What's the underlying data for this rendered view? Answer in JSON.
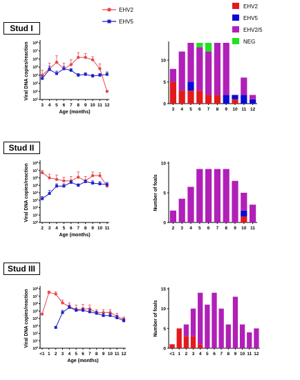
{
  "colors": {
    "ehv2": "#e8474a",
    "ehv5": "#1f1fd0",
    "bar_ehv2": "#e31a1c",
    "bar_ehv5": "#0a0ad8",
    "bar_mix": "#b020b8",
    "bar_neg": "#22e022",
    "line_ehv5": "#1a1ab8"
  },
  "line_legend": [
    {
      "key": "ehv2",
      "label": "EHV2"
    },
    {
      "key": "ehv5",
      "label": "EHV5"
    }
  ],
  "bar_legend": [
    {
      "key": "bar_ehv2",
      "label": "EHV2"
    },
    {
      "key": "bar_ehv5",
      "label": "EHV5"
    },
    {
      "key": "bar_mix",
      "label": "EHV2/5"
    },
    {
      "key": "bar_neg",
      "label": "NEG"
    }
  ],
  "studs": [
    {
      "label": "Stud I",
      "line": {
        "xlabel": "Age (months)",
        "ylabel": "Viral DNA copies/reaction",
        "categories": [
          "3",
          "4",
          "5",
          "6",
          "7",
          "8",
          "9",
          "10",
          "11",
          "12"
        ],
        "ytick_labels": [
          "10^1",
          "10^2",
          "10^3",
          "10^4",
          "10^5",
          "10^6",
          "10^7",
          "10^8"
        ],
        "ylim_log": [
          1,
          8
        ],
        "series": [
          {
            "key": "ehv2",
            "name": "EHV2",
            "values": [
              4.0,
              4.8,
              5.6,
              4.8,
              5.3,
              6.2,
              6.2,
              5.9,
              4.8,
              2.0
            ],
            "err": [
              0.6,
              0.7,
              0.8,
              0.7,
              0.6,
              0.6,
              0.5,
              0.4,
              0.6,
              0.1
            ]
          },
          {
            "key": "ehv5",
            "name": "EHV5",
            "values": [
              3.6,
              4.7,
              4.2,
              4.8,
              4.6,
              4.0,
              4.1,
              3.9,
              4.0,
              4.1
            ],
            "err": [
              0.3,
              0.4,
              0.3,
              0.3,
              0.2,
              0.2,
              0.2,
              0.2,
              0.2,
              0.3
            ]
          }
        ]
      },
      "bar": {
        "ylabel": "",
        "categories": [
          "3",
          "4",
          "5",
          "6",
          "7",
          "8",
          "9",
          "10",
          "11",
          "12"
        ],
        "ymax": 14,
        "yticks": [
          0,
          5,
          10
        ],
        "stacks": {
          "bar_ehv2": [
            5,
            3,
            3,
            3,
            2,
            2,
            0,
            1,
            0,
            0
          ],
          "bar_ehv5": [
            0,
            0,
            2,
            0,
            0,
            0,
            2,
            1,
            2,
            1
          ],
          "bar_mix": [
            3,
            9,
            9,
            10,
            10,
            12,
            12,
            0,
            4,
            1
          ],
          "bar_neg": [
            0,
            0,
            0,
            1,
            2,
            0,
            0,
            0,
            0,
            0
          ]
        }
      }
    },
    {
      "label": "Stud II",
      "line": {
        "xlabel": "Age (months)",
        "ylabel": "Viral DNA copies/reaction",
        "categories": [
          "2",
          "3",
          "4",
          "5",
          "6",
          "7",
          "8",
          "9",
          "10",
          "11"
        ],
        "ytick_labels": [
          "10^0",
          "10^1",
          "10^2",
          "10^3",
          "10^4",
          "10^5",
          "10^6",
          "10^7",
          "10^8"
        ],
        "ylim_log": [
          0,
          8
        ],
        "series": [
          {
            "key": "ehv2",
            "name": "EHV2",
            "values": [
              6.7,
              6.0,
              5.8,
              5.6,
              5.6,
              6.1,
              5.6,
              6.3,
              6.3,
              4.9
            ],
            "err": [
              0.3,
              0.5,
              0.6,
              0.5,
              0.6,
              0.7,
              0.6,
              0.5,
              0.4,
              0.3
            ]
          },
          {
            "key": "ehv5",
            "name": "EHV5",
            "values": [
              3.2,
              3.9,
              4.9,
              4.9,
              5.4,
              5.0,
              5.5,
              5.3,
              5.2,
              5.1
            ],
            "err": [
              0.3,
              0.4,
              0.3,
              0.3,
              0.2,
              0.2,
              0.2,
              0.3,
              0.3,
              0.3
            ]
          }
        ]
      },
      "bar": {
        "ylabel": "Number of foals",
        "categories": [
          "2",
          "3",
          "4",
          "5",
          "6",
          "7",
          "8",
          "9",
          "10",
          "11"
        ],
        "ymax": 10,
        "yticks": [
          0,
          5,
          10
        ],
        "stacks": {
          "bar_ehv2": [
            0,
            0,
            0,
            0,
            0,
            0,
            0,
            0,
            1,
            0
          ],
          "bar_ehv5": [
            0,
            0,
            0,
            0,
            0,
            0,
            0,
            0,
            1,
            0
          ],
          "bar_mix": [
            2,
            4,
            6,
            9,
            9,
            9,
            9,
            7,
            3,
            3
          ],
          "bar_neg": [
            0,
            0,
            0,
            0,
            0,
            0,
            0,
            0,
            0,
            0
          ]
        }
      }
    },
    {
      "label": "Stud III",
      "line": {
        "xlabel": "Age (months)",
        "ylabel": "Viral DNA copies/reaction",
        "categories": [
          "<1",
          "1",
          "2",
          "3",
          "4",
          "5",
          "6",
          "7",
          "8",
          "9",
          "10",
          "11",
          "12"
        ],
        "ytick_labels": [
          "10^0",
          "10^1",
          "10^2",
          "10^3",
          "10^4",
          "10^5",
          "10^6",
          "10^7",
          "10^8"
        ],
        "ylim_log": [
          0,
          8
        ],
        "series": [
          {
            "key": "ehv2",
            "name": "EHV2",
            "values": [
              4.6,
              7.5,
              7.3,
              6.1,
              5.6,
              5.2,
              5.3,
              5.3,
              4.8,
              4.8,
              4.8,
              4.3,
              3.9
            ],
            "err": [
              0,
              0.2,
              0.3,
              0.4,
              0.5,
              0.6,
              0.6,
              0.5,
              0.4,
              0.4,
              0.4,
              0.4,
              0.3
            ]
          },
          {
            "key": "ehv5",
            "name": "EHV5",
            "values": [
              null,
              null,
              2.8,
              4.8,
              5.5,
              5.1,
              5.1,
              4.9,
              4.7,
              4.4,
              4.4,
              4.1,
              3.7
            ],
            "err": [
              0,
              0,
              0.1,
              0.3,
              0.3,
              0.3,
              0.3,
              0.3,
              0.3,
              0.3,
              0.3,
              0.3,
              0.3
            ]
          }
        ]
      },
      "bar": {
        "ylabel": "Number of foals",
        "categories": [
          "<1",
          "1",
          "2",
          "3",
          "4",
          "5",
          "6",
          "7",
          "8",
          "9",
          "10",
          "11",
          "12"
        ],
        "ymax": 15,
        "yticks": [
          0,
          5,
          10,
          15
        ],
        "stacks": {
          "bar_ehv2": [
            1,
            5,
            3,
            3,
            1,
            0,
            0,
            0,
            0,
            0,
            0,
            0,
            0
          ],
          "bar_ehv5": [
            0,
            0,
            0,
            0,
            0,
            0,
            0,
            0,
            0,
            0,
            0,
            0,
            0
          ],
          "bar_mix": [
            0,
            0,
            3,
            7,
            13,
            11,
            14,
            10,
            6,
            13,
            6,
            4,
            5
          ],
          "bar_neg": [
            0,
            0,
            0,
            0,
            0,
            0,
            0,
            0,
            0,
            0,
            0,
            0,
            0
          ]
        }
      }
    }
  ],
  "chart_data": [
    {
      "type": "line",
      "title": "Stud I",
      "xlabel": "Age (months)",
      "ylabel": "Viral DNA copies/reaction",
      "yscale": "log",
      "categories": [
        "3",
        "4",
        "5",
        "6",
        "7",
        "8",
        "9",
        "10",
        "11",
        "12"
      ],
      "series": [
        {
          "name": "EHV2",
          "values": [
            10000,
            63000,
            400000,
            63000,
            200000,
            1600000,
            1600000,
            800000,
            63000,
            100
          ]
        },
        {
          "name": "EHV5",
          "values": [
            4000,
            50000,
            16000,
            63000,
            40000,
            10000,
            12600,
            8000,
            10000,
            12600
          ]
        }
      ]
    },
    {
      "type": "bar",
      "title": "Stud I",
      "stacked": true,
      "ylim": [
        0,
        14
      ],
      "categories": [
        "3",
        "4",
        "5",
        "6",
        "7",
        "8",
        "9",
        "10",
        "11",
        "12"
      ],
      "series": [
        {
          "name": "EHV2",
          "values": [
            5,
            3,
            3,
            3,
            2,
            2,
            0,
            1,
            0,
            0
          ]
        },
        {
          "name": "EHV5",
          "values": [
            0,
            0,
            2,
            0,
            0,
            0,
            2,
            1,
            2,
            1
          ]
        },
        {
          "name": "EHV2/5",
          "values": [
            3,
            9,
            9,
            10,
            10,
            12,
            12,
            0,
            4,
            1
          ]
        },
        {
          "name": "NEG",
          "values": [
            0,
            0,
            0,
            1,
            2,
            0,
            0,
            0,
            0,
            0
          ]
        }
      ]
    },
    {
      "type": "line",
      "title": "Stud II",
      "xlabel": "Age (months)",
      "ylabel": "Viral DNA copies/reaction",
      "yscale": "log",
      "categories": [
        "2",
        "3",
        "4",
        "5",
        "6",
        "7",
        "8",
        "9",
        "10",
        "11"
      ],
      "series": [
        {
          "name": "EHV2",
          "values": [
            5000000,
            1000000,
            630000,
            400000,
            400000,
            1260000,
            400000,
            2000000,
            2000000,
            80000
          ]
        },
        {
          "name": "EHV5",
          "values": [
            1600,
            8000,
            80000,
            80000,
            250000,
            100000,
            320000,
            200000,
            160000,
            126000
          ]
        }
      ]
    },
    {
      "type": "bar",
      "title": "Stud II",
      "stacked": true,
      "ylabel": "Number of foals",
      "ylim": [
        0,
        10
      ],
      "categories": [
        "2",
        "3",
        "4",
        "5",
        "6",
        "7",
        "8",
        "9",
        "10",
        "11"
      ],
      "series": [
        {
          "name": "EHV2",
          "values": [
            0,
            0,
            0,
            0,
            0,
            0,
            0,
            0,
            1,
            0
          ]
        },
        {
          "name": "EHV5",
          "values": [
            0,
            0,
            0,
            0,
            0,
            0,
            0,
            0,
            1,
            0
          ]
        },
        {
          "name": "EHV2/5",
          "values": [
            2,
            4,
            6,
            9,
            9,
            9,
            9,
            7,
            3,
            3
          ]
        }
      ]
    },
    {
      "type": "line",
      "title": "Stud III",
      "xlabel": "Age (months)",
      "ylabel": "Viral DNA copies/reaction",
      "yscale": "log",
      "categories": [
        "<1",
        "1",
        "2",
        "3",
        "4",
        "5",
        "6",
        "7",
        "8",
        "9",
        "10",
        "11",
        "12"
      ],
      "series": [
        {
          "name": "EHV2",
          "values": [
            40000,
            32000000,
            20000000,
            1260000,
            400000,
            160000,
            200000,
            200000,
            63000,
            63000,
            63000,
            20000,
            8000
          ]
        },
        {
          "name": "EHV5",
          "values": [
            null,
            null,
            630,
            63000,
            320000,
            126000,
            126000,
            80000,
            50000,
            25000,
            25000,
            12600,
            5000
          ]
        }
      ]
    },
    {
      "type": "bar",
      "title": "Stud III",
      "stacked": true,
      "ylabel": "Number of foals",
      "ylim": [
        0,
        15
      ],
      "categories": [
        "<1",
        "1",
        "2",
        "3",
        "4",
        "5",
        "6",
        "7",
        "8",
        "9",
        "10",
        "11",
        "12"
      ],
      "series": [
        {
          "name": "EHV2",
          "values": [
            1,
            5,
            3,
            3,
            1,
            0,
            0,
            0,
            0,
            0,
            0,
            0,
            0
          ]
        },
        {
          "name": "EHV2/5",
          "values": [
            0,
            0,
            3,
            7,
            13,
            11,
            14,
            10,
            6,
            13,
            6,
            4,
            5
          ]
        }
      ]
    }
  ]
}
